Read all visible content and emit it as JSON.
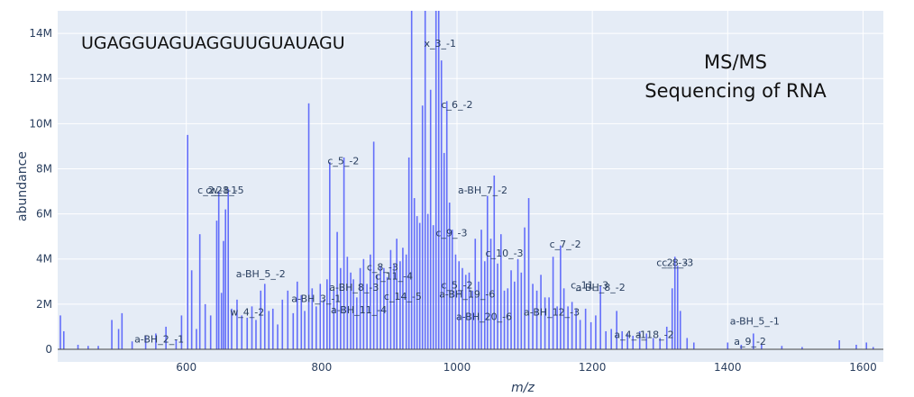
{
  "chart_data": {
    "type": "bar",
    "title": "",
    "xlabel": "m/z",
    "ylabel": "abundance",
    "xlim": [
      410,
      1630
    ],
    "ylim": [
      0,
      15000000
    ],
    "grid": true,
    "bar_color": "#636efa",
    "plot_bg": "#e5ecf6",
    "x_ticks": [
      600,
      800,
      1000,
      1200,
      1400,
      1600
    ],
    "y_ticks": [
      0,
      2000000,
      4000000,
      6000000,
      8000000,
      10000000,
      12000000,
      14000000
    ],
    "y_tick_labels": [
      "0",
      "2M",
      "4M",
      "6M",
      "8M",
      "10M",
      "12M",
      "14M"
    ],
    "annotations": [
      "UGAGGUAGUAGGUUGUAUAGU",
      "MS/MS",
      "Sequencing of RNA"
    ],
    "peaks": [
      [
        414,
        1500000
      ],
      [
        419,
        800000
      ],
      [
        440,
        200000
      ],
      [
        455,
        150000
      ],
      [
        470,
        150000
      ],
      [
        490,
        1300000
      ],
      [
        500,
        900000
      ],
      [
        505,
        1600000
      ],
      [
        520,
        350000
      ],
      [
        540,
        600000
      ],
      [
        555,
        700000
      ],
      [
        570,
        1000000
      ],
      [
        585,
        400000
      ],
      [
        593,
        1500000
      ],
      [
        602,
        9500000
      ],
      [
        608,
        3500000
      ],
      [
        615,
        900000
      ],
      [
        620,
        5100000
      ],
      [
        628,
        2000000
      ],
      [
        636,
        1500000
      ],
      [
        645,
        5700000
      ],
      [
        648,
        7000000
      ],
      [
        652,
        2500000
      ],
      [
        655,
        4800000
      ],
      [
        658,
        6200000
      ],
      [
        662,
        7100000
      ],
      [
        667,
        1800000
      ],
      [
        675,
        2200000
      ],
      [
        682,
        1500000
      ],
      [
        690,
        1400000
      ],
      [
        697,
        1900000
      ],
      [
        703,
        1300000
      ],
      [
        710,
        2600000
      ],
      [
        716,
        2900000
      ],
      [
        722,
        1700000
      ],
      [
        728,
        1800000
      ],
      [
        735,
        1100000
      ],
      [
        742,
        2200000
      ],
      [
        750,
        2600000
      ],
      [
        758,
        1600000
      ],
      [
        764,
        3000000
      ],
      [
        770,
        2400000
      ],
      [
        775,
        1700000
      ],
      [
        781,
        10900000
      ],
      [
        786,
        2700000
      ],
      [
        792,
        1900000
      ],
      [
        798,
        2900000
      ],
      [
        803,
        2200000
      ],
      [
        808,
        3100000
      ],
      [
        812,
        8300000
      ],
      [
        818,
        2600000
      ],
      [
        823,
        5200000
      ],
      [
        828,
        3600000
      ],
      [
        833,
        8500000
      ],
      [
        838,
        4100000
      ],
      [
        843,
        3400000
      ],
      [
        847,
        3100000
      ],
      [
        852,
        2300000
      ],
      [
        857,
        3600000
      ],
      [
        862,
        4000000
      ],
      [
        867,
        2900000
      ],
      [
        872,
        4200000
      ],
      [
        877,
        9200000
      ],
      [
        882,
        3300000
      ],
      [
        887,
        3700000
      ],
      [
        892,
        3600000
      ],
      [
        897,
        3200000
      ],
      [
        902,
        4400000
      ],
      [
        907,
        3800000
      ],
      [
        911,
        4900000
      ],
      [
        916,
        3900000
      ],
      [
        920,
        4500000
      ],
      [
        925,
        4200000
      ],
      [
        929,
        8500000
      ],
      [
        933,
        15000000
      ],
      [
        937,
        6700000
      ],
      [
        941,
        5900000
      ],
      [
        945,
        5600000
      ],
      [
        949,
        10800000
      ],
      [
        953,
        15000000
      ],
      [
        957,
        6000000
      ],
      [
        961,
        11500000
      ],
      [
        965,
        5500000
      ],
      [
        969,
        15000000
      ],
      [
        973,
        15000000
      ],
      [
        977,
        12800000
      ],
      [
        981,
        8700000
      ],
      [
        985,
        11000000
      ],
      [
        989,
        6500000
      ],
      [
        993,
        5300000
      ],
      [
        998,
        4200000
      ],
      [
        1003,
        3900000
      ],
      [
        1008,
        3600000
      ],
      [
        1013,
        3300000
      ],
      [
        1018,
        3400000
      ],
      [
        1023,
        2600000
      ],
      [
        1027,
        4900000
      ],
      [
        1032,
        3000000
      ],
      [
        1036,
        5300000
      ],
      [
        1041,
        3900000
      ],
      [
        1045,
        6800000
      ],
      [
        1050,
        4900000
      ],
      [
        1055,
        7700000
      ],
      [
        1060,
        3800000
      ],
      [
        1065,
        5100000
      ],
      [
        1070,
        2600000
      ],
      [
        1075,
        2700000
      ],
      [
        1080,
        3500000
      ],
      [
        1085,
        3000000
      ],
      [
        1090,
        4000000
      ],
      [
        1095,
        3400000
      ],
      [
        1100,
        5400000
      ],
      [
        1106,
        6700000
      ],
      [
        1112,
        2900000
      ],
      [
        1118,
        2600000
      ],
      [
        1124,
        3300000
      ],
      [
        1130,
        2300000
      ],
      [
        1136,
        2300000
      ],
      [
        1142,
        4100000
      ],
      [
        1148,
        1900000
      ],
      [
        1153,
        4600000
      ],
      [
        1158,
        2700000
      ],
      [
        1164,
        1900000
      ],
      [
        1170,
        2100000
      ],
      [
        1176,
        1800000
      ],
      [
        1182,
        1300000
      ],
      [
        1190,
        1800000
      ],
      [
        1198,
        1200000
      ],
      [
        1205,
        1500000
      ],
      [
        1212,
        2800000
      ],
      [
        1220,
        800000
      ],
      [
        1228,
        900000
      ],
      [
        1236,
        1700000
      ],
      [
        1244,
        800000
      ],
      [
        1252,
        700000
      ],
      [
        1260,
        600000
      ],
      [
        1270,
        800000
      ],
      [
        1280,
        700000
      ],
      [
        1290,
        500000
      ],
      [
        1300,
        500000
      ],
      [
        1310,
        1000000
      ],
      [
        1318,
        2700000
      ],
      [
        1322,
        4100000
      ],
      [
        1326,
        3700000
      ],
      [
        1330,
        1700000
      ],
      [
        1340,
        500000
      ],
      [
        1350,
        300000
      ],
      [
        1400,
        300000
      ],
      [
        1420,
        200000
      ],
      [
        1438,
        700000
      ],
      [
        1450,
        200000
      ],
      [
        1480,
        150000
      ],
      [
        1510,
        100000
      ],
      [
        1565,
        400000
      ],
      [
        1590,
        200000
      ],
      [
        1605,
        300000
      ],
      [
        1615,
        100000
      ]
    ],
    "peak_labels": [
      {
        "text": "x_3_-1",
        "x": 975,
        "y": 13400000
      },
      {
        "text": "c_6_-2",
        "x": 1000,
        "y": 10700000
      },
      {
        "text": "c_5_-2",
        "x": 832,
        "y": 8200000
      },
      {
        "text": "c_2_-1",
        "x": 640,
        "y": 6900000
      },
      {
        "text": "c_2_-1",
        "x": 652,
        "y": 6900000
      },
      {
        "text": "w_8_-5",
        "x": 660,
        "y": 6900000
      },
      {
        "text": "a-BH_7_-2",
        "x": 1038,
        "y": 6900000
      },
      {
        "text": "c_9_-3",
        "x": 992,
        "y": 5000000
      },
      {
        "text": "c_7_-2",
        "x": 1160,
        "y": 4500000
      },
      {
        "text": "c_10_-3",
        "x": 1070,
        "y": 4100000
      },
      {
        "text": "c_2_-3",
        "x": 1318,
        "y": 3700000
      },
      {
        "text": "c_8_-3",
        "x": 1326,
        "y": 3700000
      },
      {
        "text": "a-BH_5_-2",
        "x": 710,
        "y": 3200000
      },
      {
        "text": "c_8_-3",
        "x": 890,
        "y": 3500000
      },
      {
        "text": "c_11_-4",
        "x": 907,
        "y": 3100000
      },
      {
        "text": "a-BH_8_-3",
        "x": 848,
        "y": 2600000
      },
      {
        "text": "a-BH_3_-1",
        "x": 792,
        "y": 2100000
      },
      {
        "text": "c_14_-5",
        "x": 920,
        "y": 2200000
      },
      {
        "text": "c_5_-2",
        "x": 1000,
        "y": 2700000
      },
      {
        "text": "a-BH_19_-6",
        "x": 1015,
        "y": 2300000
      },
      {
        "text": "a-BH_8_-2",
        "x": 1212,
        "y": 2600000
      },
      {
        "text": "c_11_-3",
        "x": 1196,
        "y": 2700000
      },
      {
        "text": "a-BH_11_-4",
        "x": 855,
        "y": 1600000
      },
      {
        "text": "a-BH_20_-6",
        "x": 1040,
        "y": 1300000
      },
      {
        "text": "a-BH_12_-3",
        "x": 1140,
        "y": 1500000
      },
      {
        "text": "w_4_-2",
        "x": 690,
        "y": 1500000
      },
      {
        "text": "a-BH_5_-1",
        "x": 1440,
        "y": 1100000
      },
      {
        "text": "a-BH_2_-1",
        "x": 560,
        "y": 300000
      },
      {
        "text": "a_4_-1",
        "x": 1256,
        "y": 500000
      },
      {
        "text": "a_18_-2",
        "x": 1292,
        "y": 500000
      },
      {
        "text": "a_9_-2",
        "x": 1433,
        "y": 200000
      }
    ]
  }
}
